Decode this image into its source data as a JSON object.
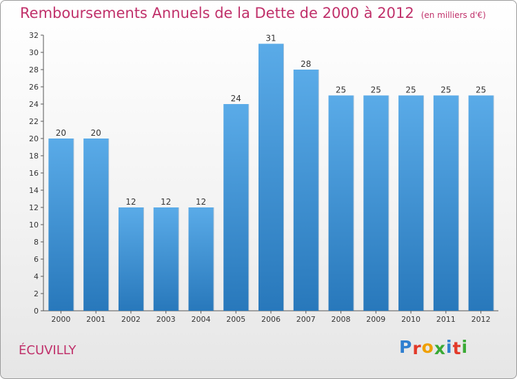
{
  "header": {
    "title": "Remboursements Annuels de la Dette de 2000 à 2012",
    "subtitle": "(en milliers d'€)"
  },
  "footer": {
    "commune": "ÉCUVILLY",
    "logo_letters": [
      "P",
      "r",
      "o",
      "x",
      "i",
      "t",
      "i"
    ],
    "logo_colors": [
      "#2f7fd0",
      "#e23a2a",
      "#f0a000",
      "#3aaa35",
      "#2f7fd0",
      "#e23a2a",
      "#3aaa35"
    ]
  },
  "chart_data": {
    "type": "bar",
    "title": "Remboursements Annuels de la Dette de 2000 à 2012",
    "subtitle": "(en milliers d'€)",
    "categories": [
      "2000",
      "2001",
      "2002",
      "2003",
      "2004",
      "2005",
      "2006",
      "2007",
      "2008",
      "2009",
      "2010",
      "2011",
      "2012"
    ],
    "values": [
      20,
      20,
      12,
      12,
      12,
      24,
      31,
      28,
      25,
      25,
      25,
      25,
      25
    ],
    "ylim": [
      0,
      32
    ],
    "yticks": [
      "0",
      "2",
      "4",
      "6",
      "8",
      "10",
      "12",
      "14",
      "16",
      "18",
      "20",
      "22",
      "24",
      "26",
      "28",
      "30",
      "32"
    ],
    "grid": false,
    "bar_color_top": "#5aabe8",
    "bar_color_bottom": "#2878bb"
  }
}
